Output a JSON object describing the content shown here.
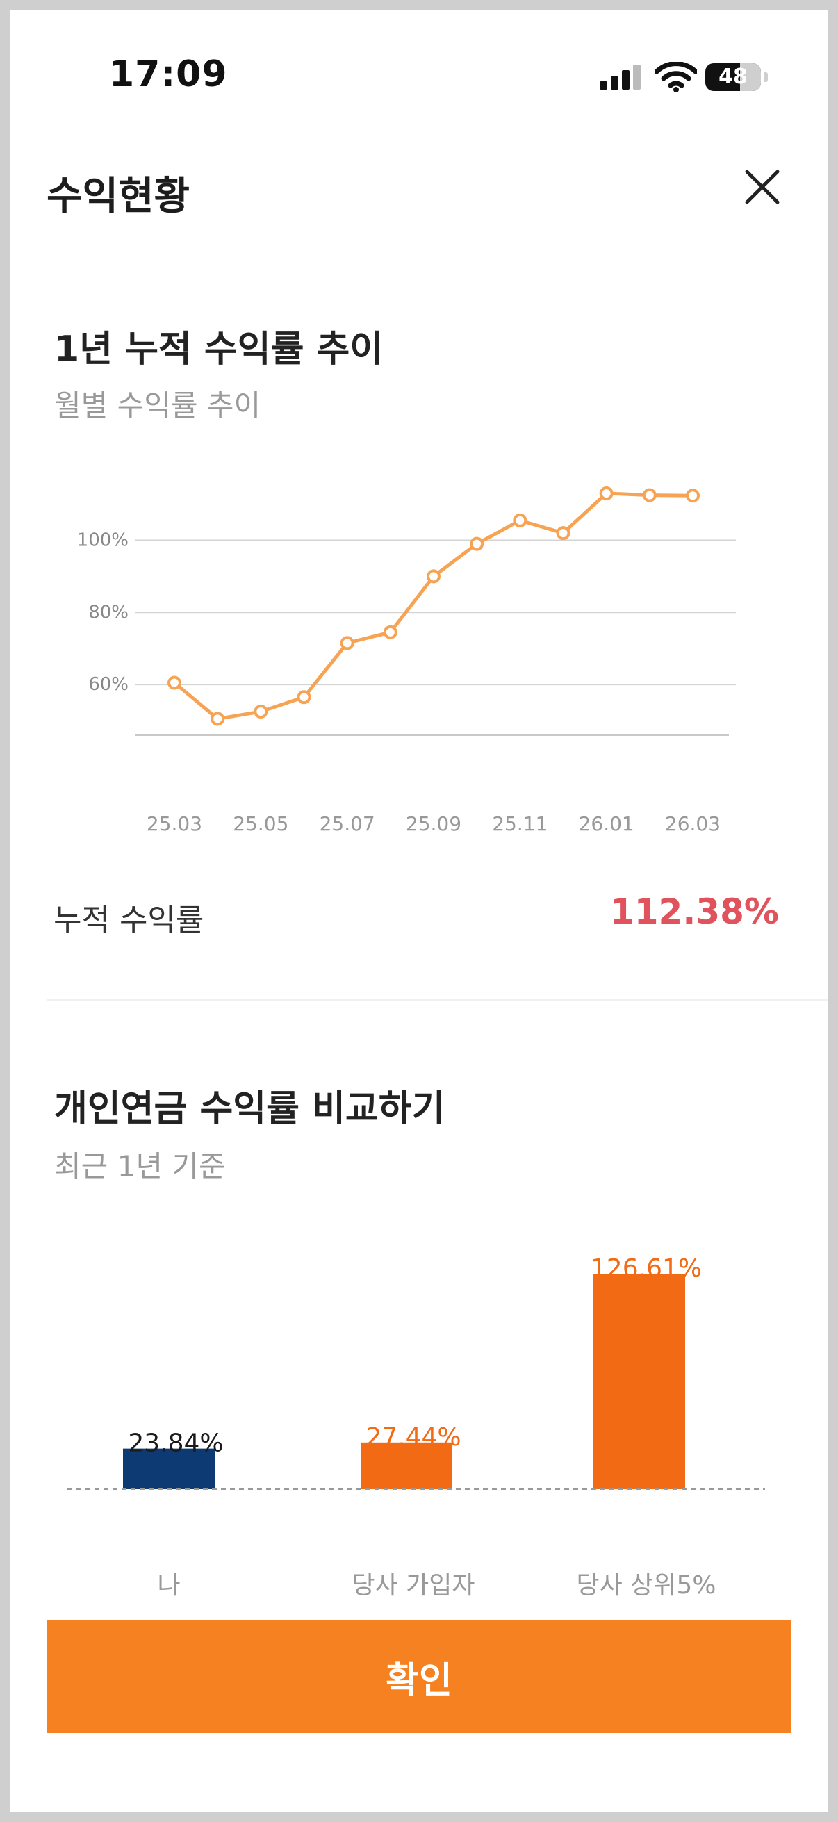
{
  "status_bar": {
    "time": "17:09",
    "battery": "48"
  },
  "header": {
    "title": "수익현황"
  },
  "trend_section": {
    "title": "1년 누적 수익률 추이",
    "subtitle": "월별 수익률 추이"
  },
  "cumulative": {
    "label": "누적 수익률",
    "value": "112.38%"
  },
  "compare_section": {
    "title": "개인연금 수익률 비교하기",
    "subtitle": "최근 1년 기준"
  },
  "confirm_button": {
    "label": "확인"
  },
  "colors": {
    "line": "#f7a354",
    "bar_me": "#0e3a74",
    "bar_company": "#f26a14",
    "cumulative_value": "#e0525c",
    "button": "#f58120"
  },
  "chart_data": [
    {
      "type": "line",
      "title": "1년 누적 수익률 추이",
      "subtitle": "월별 수익률 추이",
      "x": [
        "25.03",
        "25.04",
        "25.05",
        "25.06",
        "25.07",
        "25.08",
        "25.09",
        "25.10",
        "25.11",
        "25.12",
        "26.01",
        "26.02",
        "26.03"
      ],
      "x_tick_labels": [
        "25.03",
        "25.05",
        "25.07",
        "25.09",
        "25.11",
        "26.01",
        "26.03"
      ],
      "values": [
        60.5,
        50.5,
        52.5,
        56.5,
        71.5,
        74.5,
        90,
        99,
        105.5,
        102,
        113,
        112.5,
        112.38
      ],
      "y_ticks": [
        60,
        80,
        100
      ],
      "y_tick_labels": [
        "60%",
        "80%",
        "100%"
      ],
      "ylim": [
        47.5,
        113
      ],
      "grid": true
    },
    {
      "type": "bar",
      "categories": [
        "나",
        "당사 가입자",
        "당사 상위5%"
      ],
      "values": [
        23.84,
        27.44,
        126.61
      ],
      "value_labels": [
        "23.84%",
        "27.44%",
        "126.61%"
      ],
      "grid": false
    }
  ]
}
